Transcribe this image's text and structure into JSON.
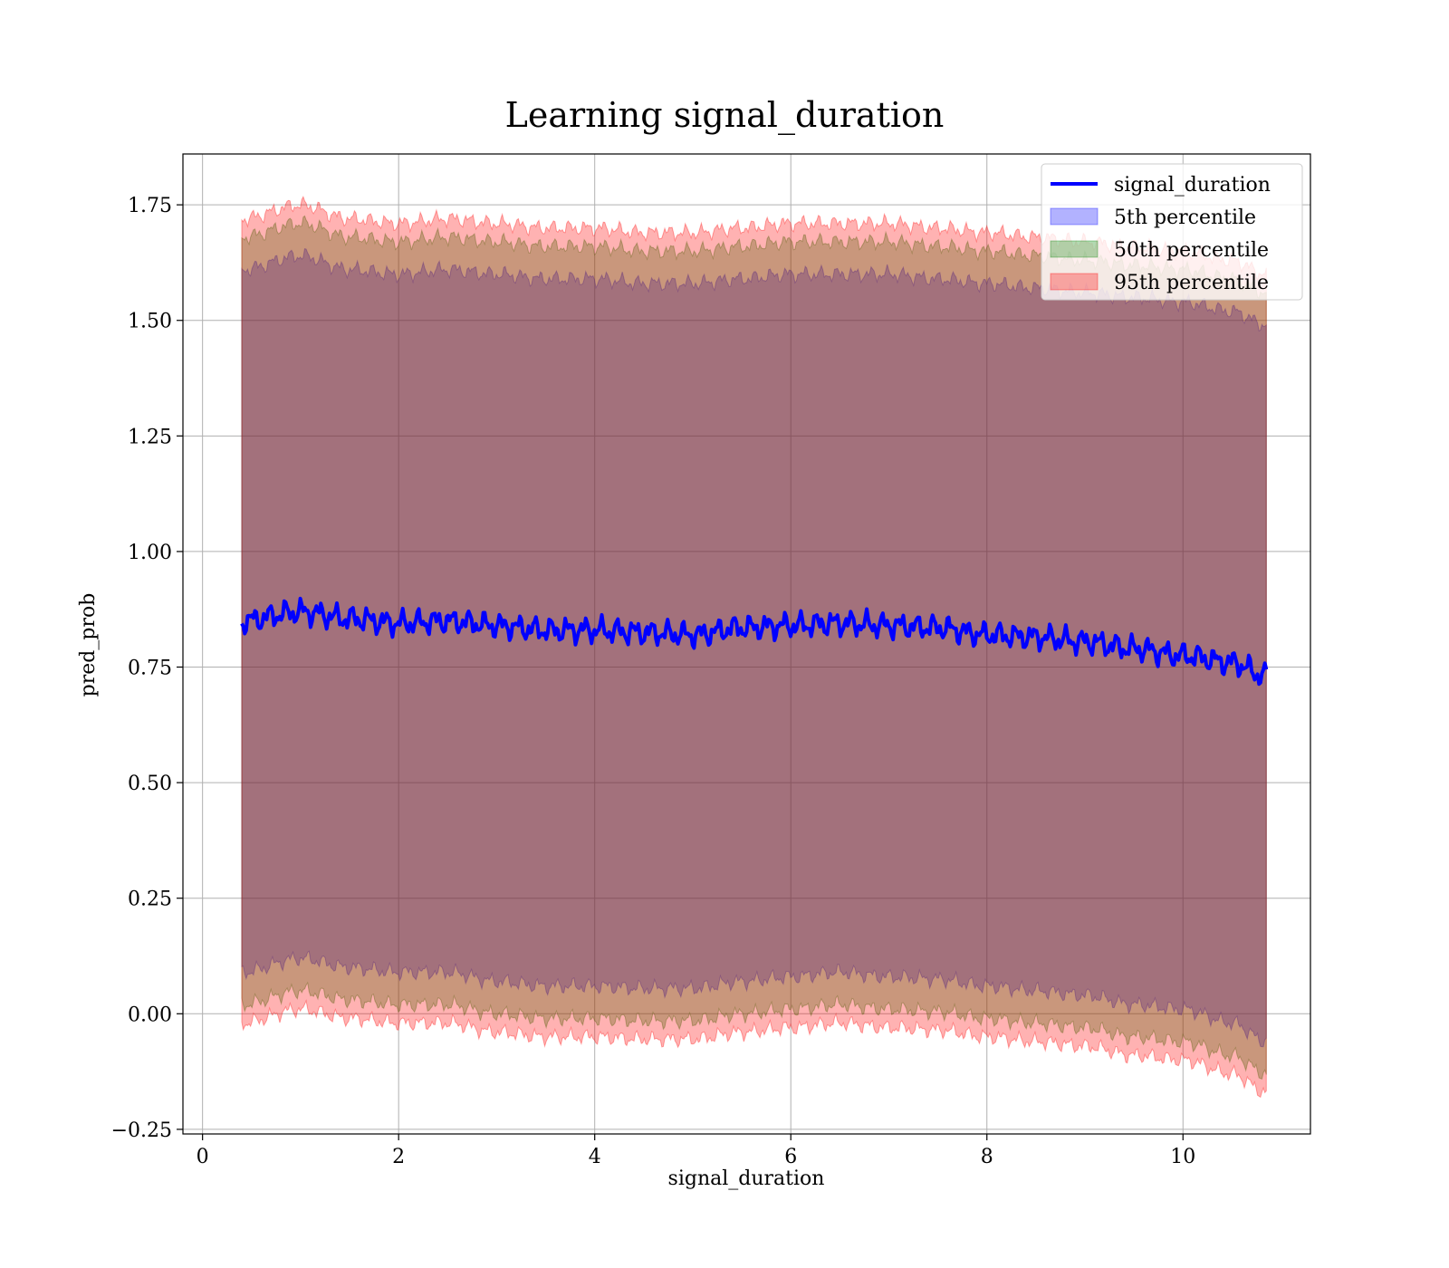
{
  "chart_data": {
    "type": "area",
    "title": "Learning signal_duration",
    "xlabel": "signal_duration",
    "ylabel": "pred_prob",
    "xlim": [
      -0.2,
      11.3
    ],
    "ylim": [
      -0.26,
      1.86
    ],
    "xticks": [
      0,
      2,
      4,
      6,
      8,
      10
    ],
    "xtick_labels": [
      "0",
      "2",
      "4",
      "6",
      "8",
      "10"
    ],
    "yticks": [
      -0.25,
      0.0,
      0.25,
      0.5,
      0.75,
      1.0,
      1.25,
      1.5,
      1.75
    ],
    "ytick_labels": [
      "−0.25",
      "0.00",
      "0.25",
      "0.50",
      "0.75",
      "1.00",
      "1.25",
      "1.50",
      "1.75"
    ],
    "grid": true,
    "legend_position": "top-right",
    "x": [
      0.4,
      1.0,
      1.5,
      2.0,
      2.5,
      3.0,
      3.5,
      4.0,
      4.5,
      5.0,
      5.5,
      6.0,
      6.5,
      7.0,
      7.5,
      8.0,
      8.5,
      9.0,
      9.5,
      10.0,
      10.5,
      10.85
    ],
    "series": [
      {
        "name": "signal_duration",
        "kind": "line",
        "color": "#0000ff",
        "values": [
          0.85,
          0.87,
          0.855,
          0.845,
          0.85,
          0.84,
          0.83,
          0.83,
          0.825,
          0.82,
          0.835,
          0.84,
          0.845,
          0.84,
          0.835,
          0.82,
          0.815,
          0.805,
          0.79,
          0.775,
          0.76,
          0.73
        ]
      },
      {
        "name": "5th percentile",
        "kind": "band",
        "color": "#0000ff",
        "lower": [
          0.09,
          0.12,
          0.1,
          0.09,
          0.09,
          0.07,
          0.06,
          0.06,
          0.055,
          0.055,
          0.07,
          0.08,
          0.09,
          0.08,
          0.075,
          0.06,
          0.05,
          0.04,
          0.02,
          0.01,
          -0.02,
          -0.06
        ],
        "upper": [
          1.61,
          1.64,
          1.61,
          1.6,
          1.61,
          1.6,
          1.59,
          1.59,
          1.58,
          1.58,
          1.59,
          1.6,
          1.6,
          1.6,
          1.59,
          1.58,
          1.57,
          1.56,
          1.55,
          1.54,
          1.52,
          1.49
        ]
      },
      {
        "name": "50th percentile",
        "kind": "band",
        "color": "#008000",
        "lower": [
          0.02,
          0.05,
          0.03,
          0.02,
          0.02,
          0.0,
          -0.01,
          -0.01,
          -0.015,
          -0.015,
          0.0,
          0.01,
          0.02,
          0.01,
          0.005,
          -0.01,
          -0.02,
          -0.03,
          -0.05,
          -0.06,
          -0.09,
          -0.13
        ],
        "upper": [
          1.68,
          1.71,
          1.68,
          1.67,
          1.68,
          1.67,
          1.66,
          1.66,
          1.65,
          1.65,
          1.66,
          1.67,
          1.67,
          1.67,
          1.66,
          1.65,
          1.64,
          1.63,
          1.62,
          1.61,
          1.59,
          1.56
        ]
      },
      {
        "name": "95th percentile",
        "kind": "band",
        "color": "#ff0000",
        "lower": [
          -0.02,
          0.01,
          -0.01,
          -0.02,
          -0.02,
          -0.04,
          -0.05,
          -0.05,
          -0.055,
          -0.055,
          -0.04,
          -0.03,
          -0.02,
          -0.03,
          -0.035,
          -0.05,
          -0.06,
          -0.07,
          -0.09,
          -0.1,
          -0.13,
          -0.17
        ],
        "upper": [
          1.72,
          1.75,
          1.72,
          1.71,
          1.72,
          1.71,
          1.7,
          1.7,
          1.69,
          1.69,
          1.7,
          1.71,
          1.71,
          1.71,
          1.7,
          1.69,
          1.68,
          1.67,
          1.66,
          1.65,
          1.63,
          1.6
        ]
      }
    ]
  }
}
